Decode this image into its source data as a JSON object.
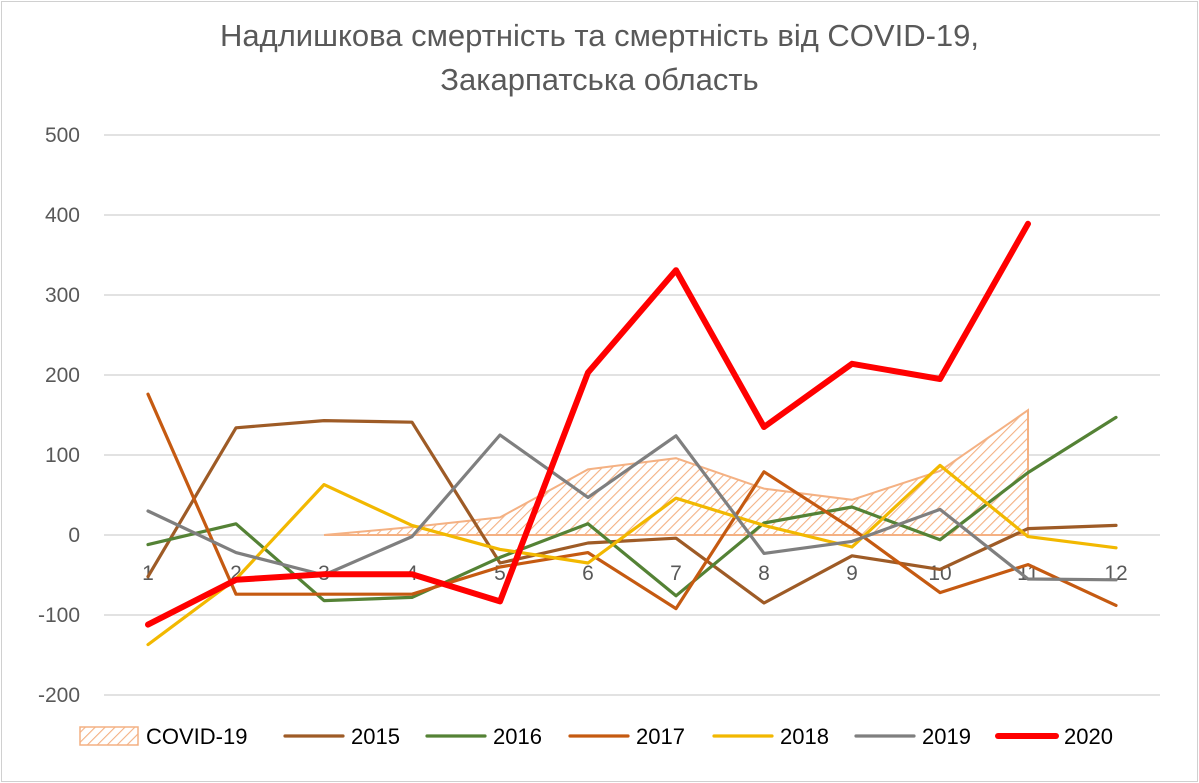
{
  "chart_data": {
    "type": "line",
    "title_line1": "Надлишкова смертність та смертність від COVID-19,",
    "title_line2": "Закарпатська область",
    "xlabel": "",
    "ylabel": "",
    "categories": [
      "1",
      "2",
      "3",
      "4",
      "5",
      "6",
      "7",
      "8",
      "9",
      "10",
      "11",
      "12"
    ],
    "ylim": [
      -200,
      500
    ],
    "yticks": [
      "-200",
      "-100",
      "0",
      "100",
      "200",
      "300",
      "400",
      "500"
    ],
    "grid": true,
    "legend_position": "bottom",
    "series": [
      {
        "name": "COVID-19",
        "kind": "area",
        "color": "#f4b183",
        "values": [
          null,
          null,
          0,
          10,
          22,
          82,
          96,
          58,
          44,
          80,
          156,
          null
        ]
      },
      {
        "name": "2015",
        "kind": "line",
        "color": "#9e5b26",
        "values": [
          -52,
          134,
          143,
          141,
          -35,
          -10,
          -4,
          -85,
          -26,
          -43,
          8,
          12
        ]
      },
      {
        "name": "2016",
        "kind": "line",
        "color": "#548235",
        "values": [
          -12,
          14,
          -82,
          -78,
          -28,
          14,
          -76,
          15,
          35,
          -6,
          78,
          147
        ]
      },
      {
        "name": "2017",
        "kind": "line",
        "color": "#c55a11",
        "values": [
          176,
          -74,
          -74,
          -74,
          -40,
          -22,
          -92,
          79,
          8,
          -72,
          -37,
          -88
        ]
      },
      {
        "name": "2018",
        "kind": "line",
        "color": "#f2b800",
        "values": [
          -137,
          -55,
          63,
          12,
          -18,
          -35,
          46,
          12,
          -15,
          87,
          -2,
          -16
        ]
      },
      {
        "name": "2019",
        "kind": "line",
        "color": "#7f7f7f",
        "values": [
          30,
          -22,
          -50,
          -2,
          125,
          47,
          124,
          -23,
          -8,
          32,
          -55,
          -56
        ]
      },
      {
        "name": "2020",
        "kind": "line",
        "color": "#ff0000",
        "values": [
          -112,
          -56,
          -49,
          -49,
          -83,
          203,
          331,
          135,
          214,
          195,
          389,
          null
        ]
      }
    ]
  }
}
